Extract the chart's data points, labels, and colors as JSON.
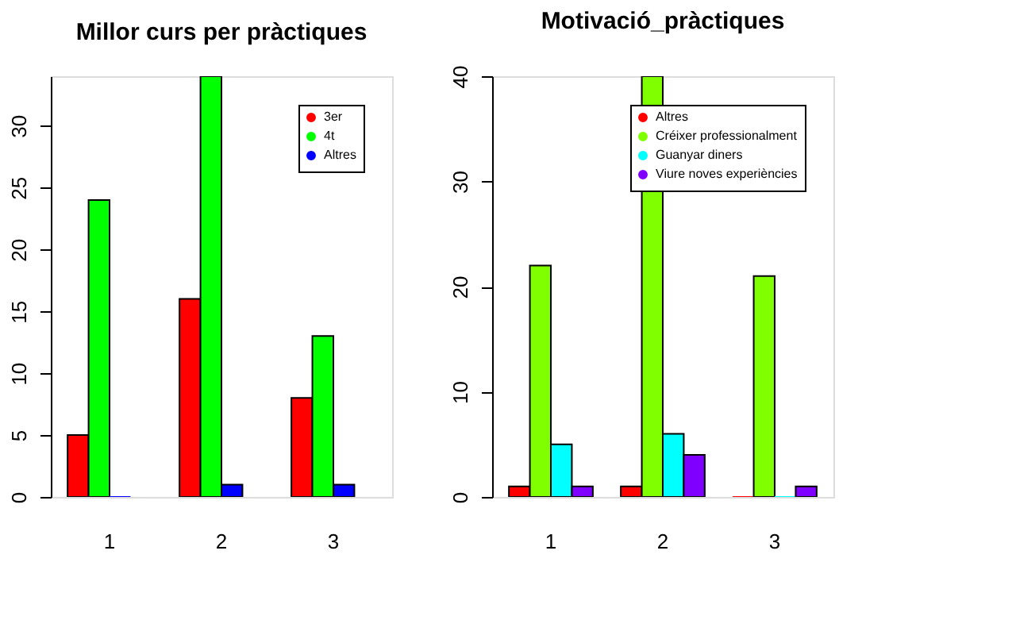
{
  "chart_data": [
    {
      "type": "bar",
      "title": "Millor curs per pràctiques",
      "categories": [
        "1",
        "2",
        "3"
      ],
      "series": [
        {
          "name": "3er",
          "color": "#ff0000",
          "values": [
            5,
            16,
            8
          ]
        },
        {
          "name": "4t",
          "color": "#00ff00",
          "values": [
            24,
            34,
            13
          ]
        },
        {
          "name": "Altres",
          "color": "#0000ff",
          "values": [
            0,
            1,
            1
          ]
        }
      ],
      "ylim": [
        0,
        34
      ],
      "yticks": [
        0,
        5,
        10,
        15,
        20,
        25,
        30
      ],
      "grid": false,
      "legend": "top right"
    },
    {
      "type": "bar",
      "title": "Motivació_pràctiques",
      "categories": [
        "1",
        "2",
        "3"
      ],
      "series": [
        {
          "name": "Altres",
          "color": "#ff0000",
          "values": [
            1,
            1,
            0
          ]
        },
        {
          "name": "Créixer professionalment",
          "color": "#80ff00",
          "values": [
            22,
            40,
            21
          ]
        },
        {
          "name": "Guanyar diners",
          "color": "#00ffff",
          "values": [
            5,
            6,
            0
          ]
        },
        {
          "name": "Viure noves experiències",
          "color": "#8000ff",
          "values": [
            1,
            4,
            1
          ]
        }
      ],
      "ylim": [
        0,
        40
      ],
      "yticks": [
        0,
        10,
        20,
        30,
        40
      ],
      "grid": false,
      "legend": "top right"
    }
  ]
}
